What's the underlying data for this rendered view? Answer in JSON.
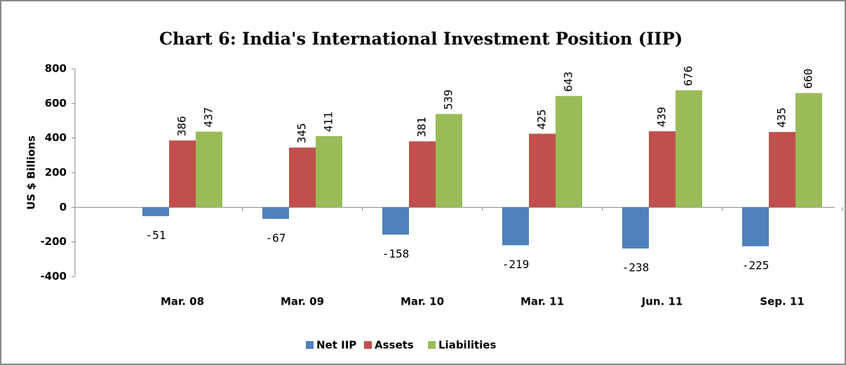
{
  "chart_data": {
    "type": "bar",
    "title": "Chart 6: India's International Investment Position (IIP)",
    "y_label": "US $ Billions",
    "categories": [
      "Mar. 08",
      "Mar. 09",
      "Mar. 10",
      "Mar. 11",
      "Jun. 11",
      "Sep. 11"
    ],
    "series": [
      {
        "name": "Net IIP",
        "color": "#4f81bd",
        "values": [
          -51,
          -67,
          -158,
          -219,
          -238,
          -225
        ]
      },
      {
        "name": "Assets",
        "color": "#c0504d",
        "values": [
          386,
          345,
          381,
          425,
          439,
          435
        ]
      },
      {
        "name": "Liabilities",
        "color": "#9bbb59",
        "values": [
          437,
          411,
          539,
          643,
          676,
          660
        ]
      }
    ],
    "ylim": [
      -400,
      800
    ],
    "yticks": [
      -400,
      -200,
      0,
      200,
      400,
      600,
      800
    ],
    "legend": "bottom"
  }
}
